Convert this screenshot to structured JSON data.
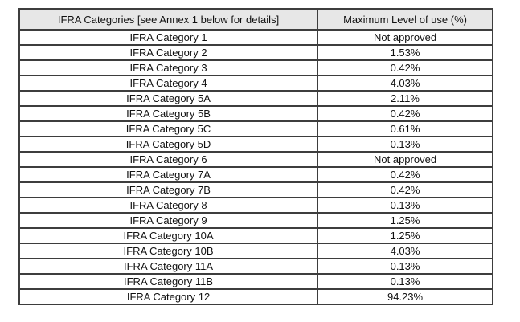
{
  "colors": {
    "header_bg": "#e7e7e7",
    "border": "#3d3d3d",
    "text": "#111111",
    "page_bg": "#ffffff"
  },
  "table": {
    "columns": [
      "IFRA Categories [see Annex 1 below for details]",
      "Maximum Level of use (%)"
    ],
    "rows": [
      {
        "category": "IFRA Category 1",
        "max_level": "Not approved"
      },
      {
        "category": "IFRA Category 2",
        "max_level": "1.53%"
      },
      {
        "category": "IFRA Category 3",
        "max_level": "0.42%"
      },
      {
        "category": "IFRA Category 4",
        "max_level": "4.03%"
      },
      {
        "category": "IFRA Category 5A",
        "max_level": "2.11%"
      },
      {
        "category": "IFRA Category 5B",
        "max_level": "0.42%"
      },
      {
        "category": "IFRA Category 5C",
        "max_level": "0.61%"
      },
      {
        "category": "IFRA Category 5D",
        "max_level": "0.13%"
      },
      {
        "category": "IFRA Category 6",
        "max_level": "Not approved"
      },
      {
        "category": "IFRA Category 7A",
        "max_level": "0.42%"
      },
      {
        "category": "IFRA Category 7B",
        "max_level": "0.42%"
      },
      {
        "category": "IFRA Category 8",
        "max_level": "0.13%"
      },
      {
        "category": "IFRA Category 9",
        "max_level": "1.25%"
      },
      {
        "category": "IFRA Category 10A",
        "max_level": "1.25%"
      },
      {
        "category": "IFRA Category 10B",
        "max_level": "4.03%"
      },
      {
        "category": "IFRA Category 11A",
        "max_level": "0.13%"
      },
      {
        "category": "IFRA Category 11B",
        "max_level": "0.13%"
      },
      {
        "category": "IFRA Category 12",
        "max_level": "94.23%"
      }
    ]
  }
}
